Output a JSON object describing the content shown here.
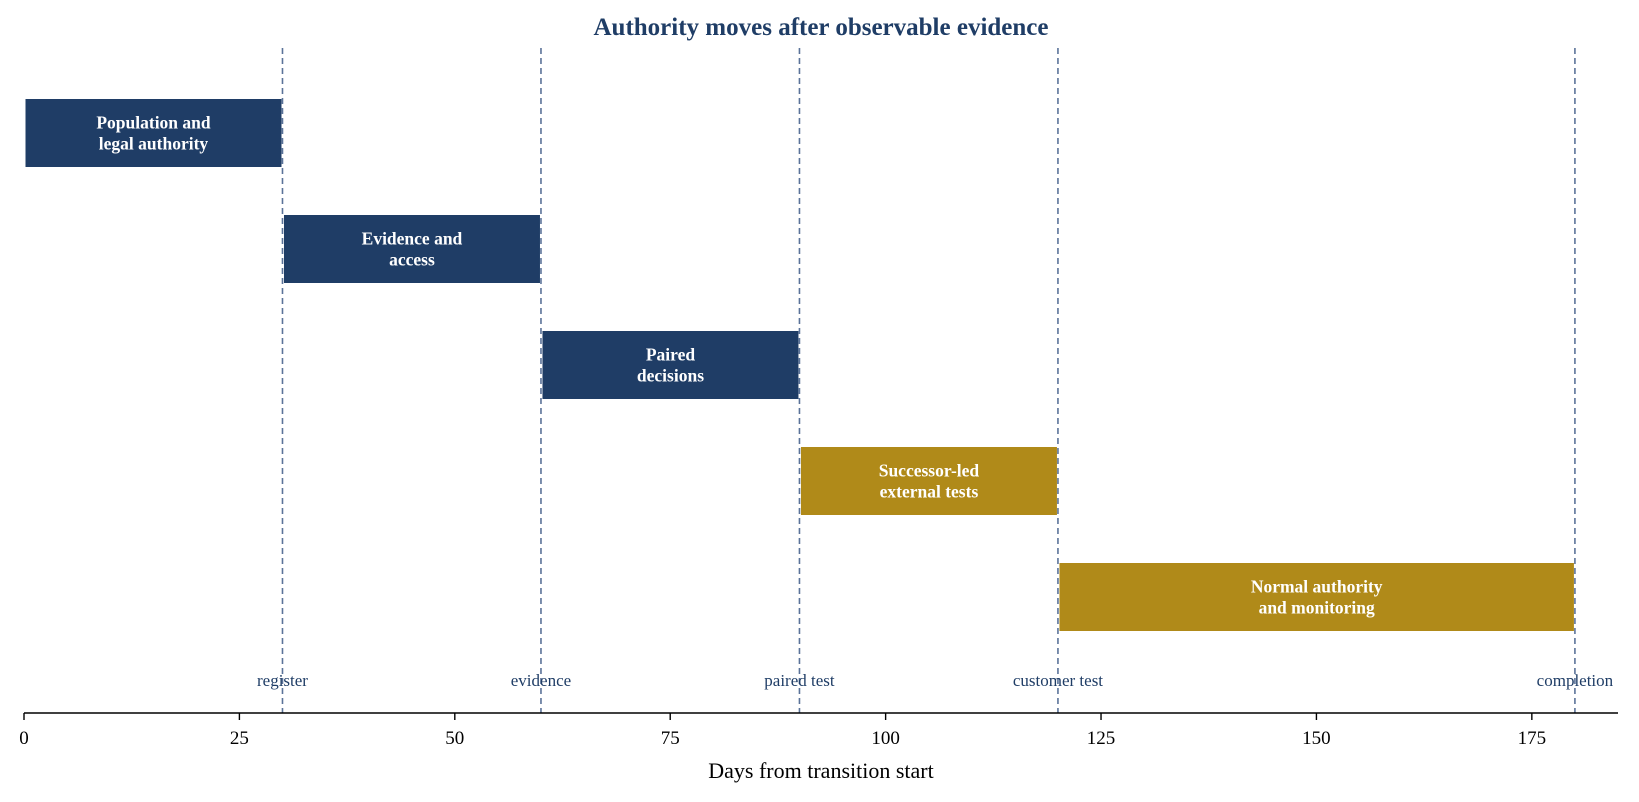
{
  "chart_data": {
    "type": "bar",
    "orientation": "horizontal-timeline",
    "title": "Authority moves after observable evidence",
    "xlabel": "Days from transition start",
    "ylabel": "",
    "xlim": [
      0,
      185
    ],
    "xticks": [
      0,
      25,
      50,
      75,
      100,
      125,
      150,
      175
    ],
    "grid": false,
    "colors": {
      "dark": "#1f3d66",
      "gold": "#b08a19",
      "milestone_line": "#5b7399"
    },
    "phases": [
      {
        "label": "Population and\nlegal authority",
        "start": 0,
        "end": 30,
        "color": "dark"
      },
      {
        "label": "Evidence and\naccess",
        "start": 30,
        "end": 60,
        "color": "dark"
      },
      {
        "label": "Paired\ndecisions",
        "start": 60,
        "end": 90,
        "color": "dark"
      },
      {
        "label": "Successor-led\nexternal tests",
        "start": 90,
        "end": 120,
        "color": "gold"
      },
      {
        "label": "Normal authority\nand monitoring",
        "start": 120,
        "end": 180,
        "color": "gold"
      }
    ],
    "milestones": [
      {
        "label": "register",
        "x": 30
      },
      {
        "label": "evidence",
        "x": 60
      },
      {
        "label": "paired test",
        "x": 90
      },
      {
        "label": "customer test",
        "x": 120
      },
      {
        "label": "completion",
        "x": 180
      }
    ]
  }
}
